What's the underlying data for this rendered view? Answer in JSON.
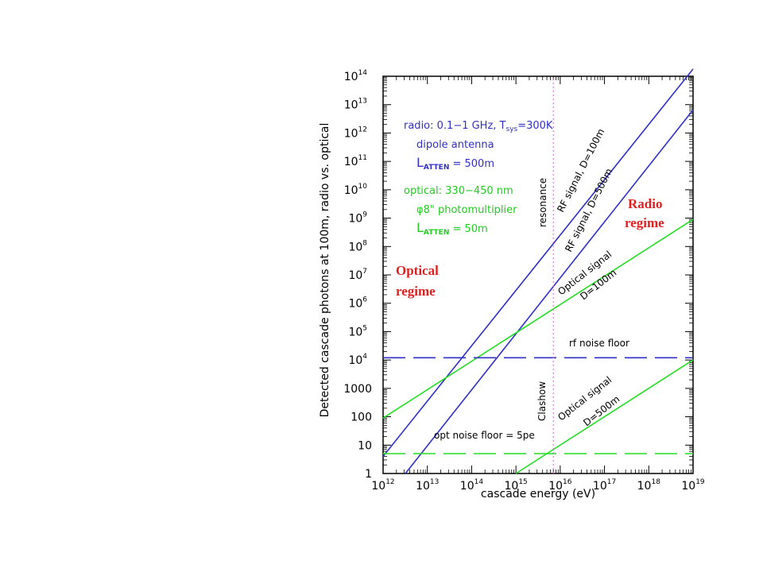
{
  "chart_data": {
    "type": "line",
    "xlabel": "cascade energy (eV)",
    "ylabel": "Detected cascade photons at 100m,   radio vs. optical",
    "xscale": "log",
    "yscale": "log",
    "xlim": [
      1000000000000.0,
      1e+19
    ],
    "ylim": [
      1,
      100000000000000.0
    ],
    "grid": false,
    "x_ticks": [
      {
        "value": 1000000000000.0,
        "base": "10",
        "exp": "12"
      },
      {
        "value": 10000000000000.0,
        "base": "10",
        "exp": "13"
      },
      {
        "value": 100000000000000.0,
        "base": "10",
        "exp": "14"
      },
      {
        "value": 1000000000000000.0,
        "base": "10",
        "exp": "15"
      },
      {
        "value": 1e+16,
        "base": "10",
        "exp": "16"
      },
      {
        "value": 1e+17,
        "base": "10",
        "exp": "17"
      },
      {
        "value": 1e+18,
        "base": "10",
        "exp": "18"
      },
      {
        "value": 1e+19,
        "base": "10",
        "exp": "19"
      }
    ],
    "y_ticks": [
      {
        "value": 1,
        "base": "1",
        "exp": ""
      },
      {
        "value": 10,
        "base": "10",
        "exp": ""
      },
      {
        "value": 100,
        "base": "100",
        "exp": ""
      },
      {
        "value": 1000,
        "base": "1000",
        "exp": ""
      },
      {
        "value": 10000.0,
        "base": "10",
        "exp": "4"
      },
      {
        "value": 100000.0,
        "base": "10",
        "exp": "5"
      },
      {
        "value": 1000000.0,
        "base": "10",
        "exp": "6"
      },
      {
        "value": 10000000.0,
        "base": "10",
        "exp": "7"
      },
      {
        "value": 100000000.0,
        "base": "10",
        "exp": "8"
      },
      {
        "value": 1000000000.0,
        "base": "10",
        "exp": "9"
      },
      {
        "value": 10000000000.0,
        "base": "10",
        "exp": "10"
      },
      {
        "value": 100000000000.0,
        "base": "10",
        "exp": "11"
      },
      {
        "value": 1000000000000.0,
        "base": "10",
        "exp": "12"
      },
      {
        "value": 10000000000000.0,
        "base": "10",
        "exp": "13"
      },
      {
        "value": 100000000000000.0,
        "base": "10",
        "exp": "14"
      }
    ],
    "series": [
      {
        "name": "RF signal, D=100m",
        "color": "#3030c8",
        "dash": "solid",
        "x": [
          1000000000000.0,
          1e+19
        ],
        "y": [
          4,
          180000000000000.0
        ]
      },
      {
        "name": "RF signal, D=500m",
        "color": "#3030c8",
        "dash": "solid",
        "x": [
          3200000000000.0,
          1e+19
        ],
        "y": [
          1,
          6500000000000.0
        ]
      },
      {
        "name": "Optical signal D=100m",
        "color": "#22dd22",
        "dash": "solid",
        "x": [
          1000000000000.0,
          1e+19
        ],
        "y": [
          90,
          900000000.0
        ]
      },
      {
        "name": "Optical signal D=500m",
        "color": "#22dd22",
        "dash": "solid",
        "x": [
          1000000000000000.0,
          1e+19
        ],
        "y": [
          1,
          10000.0
        ]
      },
      {
        "name": "rf noise floor",
        "color": "#3030c8",
        "dash": "dashed",
        "x": [
          1000000000000.0,
          1e+19
        ],
        "y": [
          12000.0,
          12000.0
        ]
      },
      {
        "name": "opt noise floor = 5pe",
        "color": "#22dd22",
        "dash": "dashed",
        "x": [
          1000000000000.0,
          1e+19
        ],
        "y": [
          5,
          5
        ]
      },
      {
        "name": "resonance",
        "color": "#cc66cc",
        "dash": "dotted",
        "x": [
          7000000000000000.0,
          7000000000000000.0
        ],
        "y": [
          1,
          100000000000000.0
        ]
      }
    ],
    "curve_labels": [
      {
        "series": "RF signal, D=100m",
        "line1": "RF signal, D=100m",
        "line2": ""
      },
      {
        "series": "RF signal, D=500m",
        "line1": "RF signal, D=500m",
        "line2": ""
      },
      {
        "series": "Optical signal D=100m",
        "line1": "Optical signal",
        "line2": "D=100m"
      },
      {
        "series": "Optical signal D=500m",
        "line1": "Optical signal",
        "line2": "D=500m"
      },
      {
        "series": "rf noise floor",
        "line1": "rf noise floor",
        "line2": ""
      },
      {
        "series": "opt noise floor = 5pe",
        "line1": "opt noise floor = 5pe",
        "line2": ""
      }
    ],
    "vertical_labels": {
      "resonance": "resonance",
      "clashow": "Clashow"
    },
    "legend": {
      "radio_line1": "radio: 0.1−1 GHz, T",
      "radio_tsys_sub": "sys",
      "radio_line1_tail": "=300K",
      "radio_line2": "dipole antenna",
      "radio_line3_l": "L",
      "radio_line3_sub": "ATTEN",
      "radio_line3_tail": " = 500m",
      "optical_line1": "optical: 330−450 nm",
      "optical_line2": "φ8\" photomultiplier",
      "optical_line3_l": "L",
      "optical_line3_sub": "ATTEN",
      "optical_line3_tail": " = 50m"
    },
    "annotations": {
      "radio_regime_1": "Radio",
      "radio_regime_2": "regime",
      "optical_regime_1": "Optical",
      "optical_regime_2": "regime"
    },
    "colors": {
      "radio": "#3030c8",
      "optical": "#22dd22",
      "regime": "#e02020",
      "resonance": "#cc66cc"
    }
  }
}
